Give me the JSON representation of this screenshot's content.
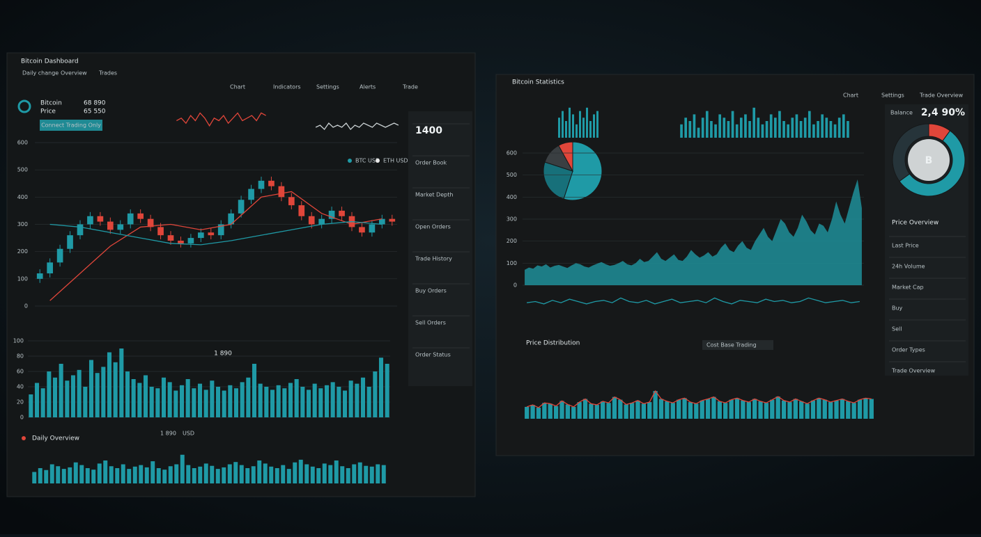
{
  "left": {
    "title": "Bitcoin Dashboard",
    "menu": [
      "Daily change",
      "Overview",
      "Trades"
    ],
    "toolbar": [
      "Chart",
      "Indicators",
      "Settings",
      "Alerts",
      "Trade"
    ],
    "ticker": {
      "name": "Bitcoin",
      "label": "Price",
      "price": "68 890",
      "change": "65 550"
    },
    "button": "Connect Trading Only",
    "spark1": {
      "values": [
        5,
        6,
        4,
        7,
        5,
        8,
        6,
        3,
        6,
        5,
        7,
        4,
        6,
        8,
        5,
        6,
        7,
        5,
        8,
        7
      ],
      "ylim": [
        0,
        10
      ]
    },
    "spark2": {
      "values": [
        4,
        5,
        3,
        6,
        4,
        5,
        4,
        6,
        3,
        5,
        4,
        6,
        5,
        4,
        6,
        5,
        4,
        5,
        6,
        5
      ],
      "ylim": [
        0,
        10
      ]
    },
    "legend": [
      "BTC USD",
      "ETH USD"
    ],
    "candles": {
      "ohlc": [
        [
          100,
          135,
          85,
          120
        ],
        [
          120,
          175,
          105,
          160
        ],
        [
          160,
          225,
          145,
          210
        ],
        [
          210,
          275,
          195,
          260
        ],
        [
          260,
          315,
          245,
          300
        ],
        [
          300,
          345,
          285,
          330
        ],
        [
          330,
          345,
          295,
          310
        ],
        [
          310,
          325,
          265,
          280
        ],
        [
          280,
          315,
          265,
          300
        ],
        [
          300,
          355,
          285,
          340
        ],
        [
          340,
          355,
          305,
          320
        ],
        [
          320,
          335,
          275,
          290
        ],
        [
          290,
          305,
          245,
          260
        ],
        [
          260,
          275,
          225,
          240
        ],
        [
          240,
          255,
          215,
          230
        ],
        [
          230,
          265,
          215,
          250
        ],
        [
          250,
          285,
          235,
          270
        ],
        [
          270,
          285,
          245,
          260
        ],
        [
          260,
          315,
          245,
          300
        ],
        [
          300,
          355,
          285,
          340
        ],
        [
          340,
          405,
          325,
          390
        ],
        [
          390,
          445,
          375,
          430
        ],
        [
          430,
          475,
          415,
          460
        ],
        [
          460,
          475,
          425,
          440
        ],
        [
          440,
          455,
          385,
          400
        ],
        [
          400,
          415,
          355,
          370
        ],
        [
          370,
          385,
          315,
          330
        ],
        [
          330,
          345,
          285,
          300
        ],
        [
          300,
          335,
          285,
          320
        ],
        [
          320,
          365,
          305,
          350
        ],
        [
          350,
          365,
          315,
          330
        ],
        [
          330,
          345,
          275,
          290
        ],
        [
          290,
          305,
          255,
          270
        ],
        [
          270,
          315,
          255,
          300
        ],
        [
          300,
          335,
          285,
          320
        ],
        [
          320,
          335,
          295,
          310
        ]
      ],
      "ylim": [
        0,
        600
      ],
      "yticks": [
        0,
        100,
        200,
        300,
        400,
        500,
        600
      ]
    },
    "ma": [
      {
        "color": "#e0463a",
        "values": [
          20,
          120,
          220,
          290,
          300,
          280,
          300,
          400,
          420,
          340,
          300,
          320
        ]
      },
      {
        "color": "#1f9aa6",
        "values": [
          300,
          290,
          270,
          250,
          230,
          225,
          240,
          260,
          280,
          300,
          310,
          300
        ]
      }
    ],
    "volume": {
      "label": "1 890",
      "values": [
        30,
        45,
        38,
        60,
        52,
        70,
        48,
        55,
        62,
        40,
        75,
        58,
        66,
        85,
        72,
        90,
        60,
        50,
        45,
        55,
        40,
        38,
        52,
        46,
        35,
        42,
        50,
        38,
        44,
        36,
        48,
        40,
        35,
        42,
        38,
        46,
        52,
        70,
        44,
        40,
        36,
        42,
        38,
        45,
        50,
        40,
        36,
        44,
        38,
        42,
        46,
        40,
        35,
        48,
        44,
        52,
        40,
        60,
        78,
        70
      ],
      "ylim": [
        0,
        100
      ],
      "yticks": [
        0,
        20,
        40,
        60,
        80,
        100
      ]
    },
    "bottom": {
      "title": "Daily Overview",
      "value": "1 890",
      "unit": "USD",
      "values": [
        30,
        40,
        35,
        50,
        45,
        38,
        42,
        55,
        48,
        40,
        36,
        52,
        60,
        45,
        40,
        50,
        38,
        44,
        48,
        42,
        58,
        40,
        36,
        45,
        50,
        75,
        48,
        40,
        44,
        52,
        46,
        38,
        42,
        50,
        56,
        48,
        40,
        45,
        60,
        52,
        44,
        40,
        48,
        38,
        55,
        62,
        50,
        44,
        40,
        52,
        48,
        60,
        45,
        40,
        50,
        55,
        46,
        44,
        50,
        48
      ],
      "ylim": [
        0,
        100
      ]
    },
    "side": [
      "1400",
      "Order Book",
      "Market Depth",
      "Open Orders",
      "Trade History",
      "Buy Orders",
      "Sell Orders",
      "Order Status"
    ]
  },
  "right": {
    "title": "Bitcoin Statistics",
    "toolbar": [
      "Chart",
      "Settings",
      "Trade Overview"
    ],
    "pie": {
      "values": [
        55,
        25,
        12,
        8
      ],
      "colors": [
        "#1f9aa6",
        "#17707a",
        "#3a3f42",
        "#e0463a"
      ]
    },
    "bars1": {
      "values": [
        6,
        8,
        5,
        9,
        7,
        4,
        8,
        6,
        9,
        5,
        7,
        8
      ],
      "ylim": [
        0,
        10
      ]
    },
    "bars2": {
      "values": [
        4,
        6,
        5,
        7,
        3,
        6,
        8,
        5,
        4,
        7,
        6,
        5,
        8,
        4,
        6,
        7,
        5,
        9,
        6,
        4,
        5,
        7,
        6,
        8,
        5,
        4,
        6,
        7,
        5,
        6,
        8,
        4,
        5,
        7,
        6,
        5,
        4,
        6,
        7,
        5
      ],
      "ylim": [
        0,
        10
      ]
    },
    "area": {
      "values": [
        70,
        80,
        75,
        90,
        85,
        95,
        80,
        88,
        92,
        85,
        78,
        90,
        100,
        95,
        85,
        80,
        90,
        98,
        105,
        95,
        88,
        92,
        100,
        110,
        95,
        90,
        100,
        120,
        105,
        110,
        130,
        150,
        120,
        110,
        125,
        140,
        115,
        110,
        130,
        160,
        140,
        125,
        135,
        150,
        130,
        140,
        170,
        190,
        160,
        150,
        180,
        200,
        170,
        160,
        200,
        230,
        260,
        220,
        200,
        250,
        300,
        280,
        240,
        220,
        260,
        320,
        290,
        250,
        230,
        280,
        270,
        240,
        300,
        380,
        320,
        280,
        350,
        420,
        480,
        350
      ],
      "ylim": [
        0,
        600
      ],
      "yticks": [
        0,
        100,
        200,
        300,
        400,
        500,
        600
      ]
    },
    "osc": {
      "values": [
        4,
        5,
        3,
        6,
        4,
        7,
        5,
        3,
        5,
        6,
        4,
        8,
        5,
        4,
        6,
        3,
        5,
        7,
        4,
        5,
        6,
        4,
        8,
        5,
        3,
        6,
        5,
        4,
        7,
        5,
        6,
        4,
        5,
        8,
        6,
        4,
        5,
        6,
        4,
        5
      ],
      "ylim": [
        0,
        10
      ]
    },
    "donut": {
      "label": "B",
      "value": "2,4 90%",
      "caption": "Balance",
      "values": [
        10,
        55,
        35
      ],
      "colors": [
        "#e0463a",
        "#1f9aa6",
        "#26343a"
      ]
    },
    "side_title": "Price Overview",
    "side": [
      "Last Price",
      "24h Volume",
      "Market Cap",
      "Buy",
      "Sell",
      "Order Types",
      "Trade Overview"
    ],
    "lower": {
      "title": "Price Distribution",
      "legend": "Cost Base Trading",
      "values": [
        30,
        35,
        28,
        40,
        38,
        32,
        45,
        36,
        30,
        42,
        50,
        38,
        35,
        44,
        40,
        55,
        48,
        36,
        40,
        46,
        38,
        42,
        70,
        50,
        44,
        40,
        48,
        52,
        42,
        38,
        46,
        50,
        55,
        44,
        40,
        48,
        52,
        46,
        42,
        50,
        44,
        40,
        48,
        56,
        46,
        42,
        50,
        44,
        38,
        46,
        52,
        48,
        42,
        46,
        50,
        44,
        40,
        48,
        52,
        50
      ],
      "ylim": [
        0,
        100
      ]
    }
  }
}
